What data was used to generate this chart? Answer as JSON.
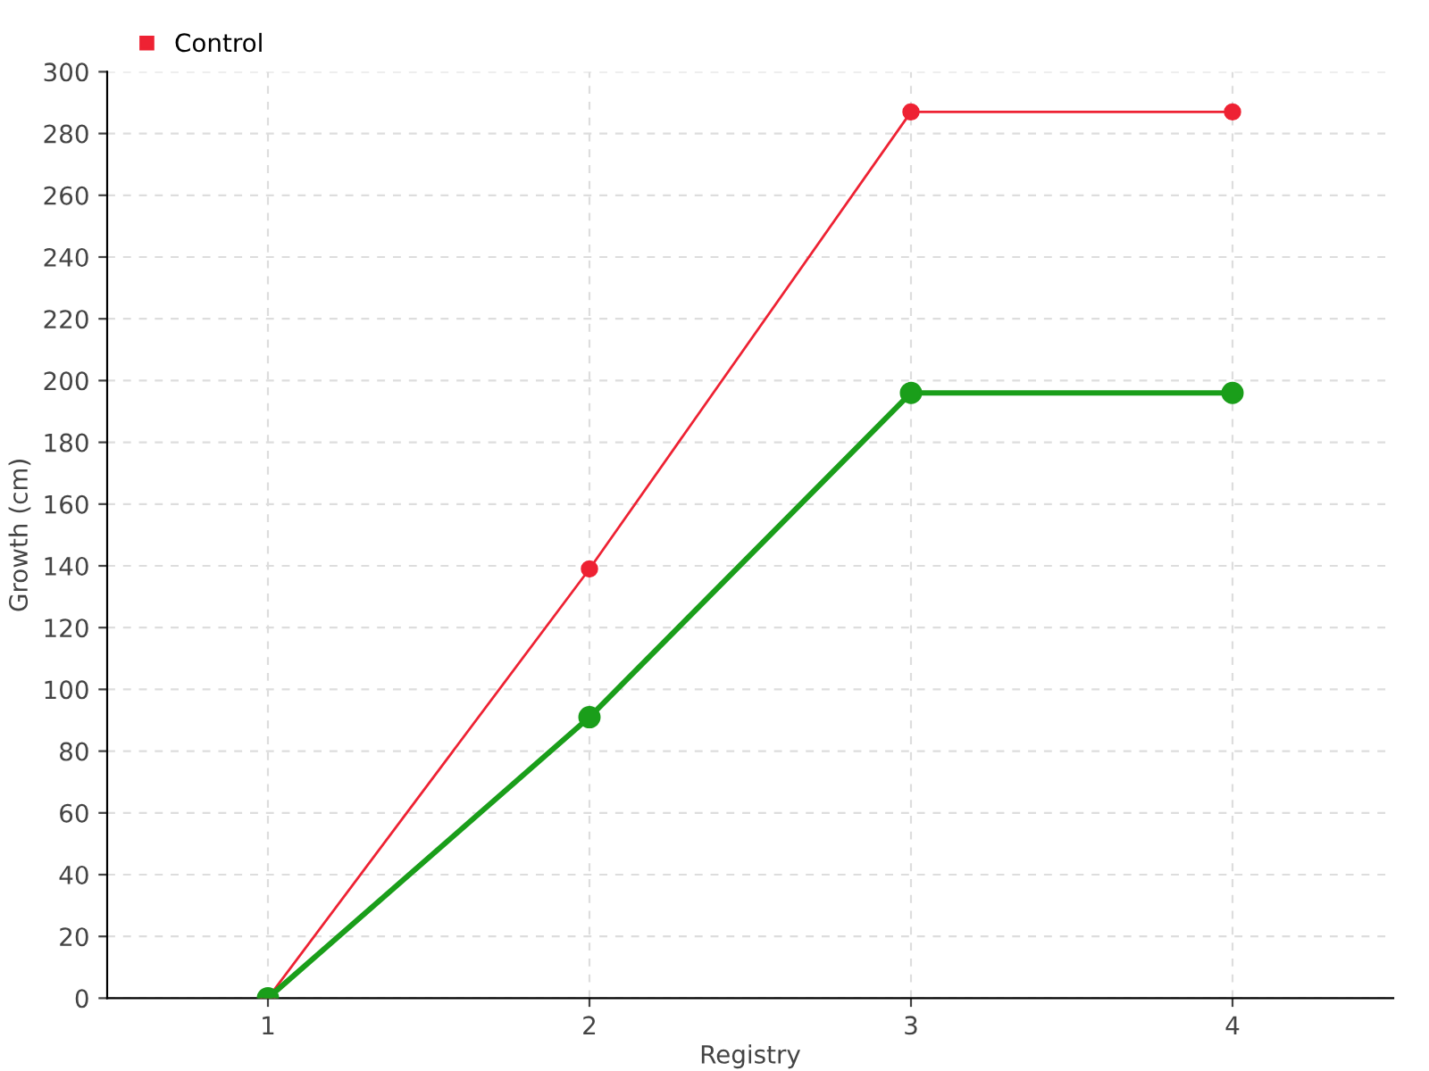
{
  "chart_data": {
    "type": "line",
    "xlabel": "Registry",
    "ylabel": "Growth (cm)",
    "x": [
      1,
      2,
      3,
      4
    ],
    "series": [
      {
        "color": "#1a9e1a",
        "values": [
          0,
          91,
          196,
          196
        ]
      },
      {
        "name": "Control",
        "color": "#ee2233",
        "values": [
          0,
          139,
          287,
          287
        ]
      }
    ],
    "xlim": [
      0.5,
      4.5
    ],
    "xticks": [
      1,
      2,
      3,
      4
    ],
    "ylim": [
      0,
      300
    ],
    "yticks": [
      0,
      20,
      40,
      60,
      80,
      100,
      120,
      140,
      160,
      180,
      200,
      220,
      240,
      260,
      280,
      300
    ],
    "grid": true,
    "legend": "top left",
    "marker": "circle",
    "line_style": "solid"
  }
}
